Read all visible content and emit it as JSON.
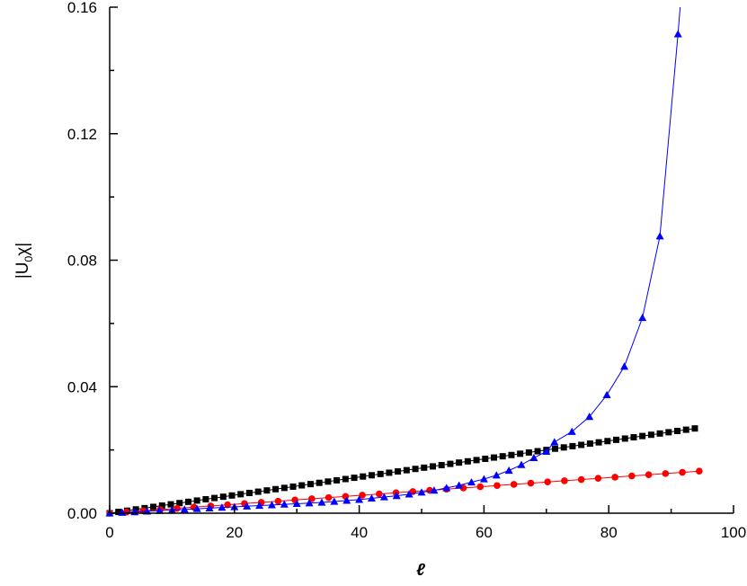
{
  "chart_data": {
    "type": "line",
    "xlabel": "ℓ",
    "ylabel_main": "|U",
    "ylabel_sub": "0",
    "ylabel_tail": "χ|",
    "xlim": [
      0,
      100
    ],
    "ylim": [
      0,
      0.16
    ],
    "x_ticks": [
      0,
      20,
      40,
      60,
      80,
      100
    ],
    "x_tick_labels": [
      "0",
      "20",
      "40",
      "60",
      "80",
      "100"
    ],
    "y_ticks": [
      0,
      0.04,
      0.08,
      0.12,
      0.16
    ],
    "y_tick_labels": [
      "0.00",
      "0.04",
      "0.08",
      "0.12",
      "0.16"
    ],
    "grid": false,
    "series": [
      {
        "marker": "square",
        "color": "#000000",
        "x": [
          0,
          1.4,
          2.8,
          4.2,
          5.6,
          7.0,
          8.4,
          9.8,
          11.2,
          12.6,
          14.0,
          15.4,
          16.8,
          18.2,
          19.6,
          21.0,
          22.4,
          23.8,
          25.2,
          26.6,
          28.0,
          29.4,
          30.8,
          32.2,
          33.6,
          35.0,
          36.4,
          37.8,
          39.2,
          40.6,
          42.0,
          43.4,
          44.8,
          46.2,
          47.6,
          49.0,
          50.4,
          51.8,
          53.2,
          54.6,
          56.0,
          57.4,
          58.8,
          60.2,
          61.6,
          63.0,
          64.4,
          65.8,
          67.2,
          68.6,
          70.0,
          71.4,
          72.8,
          74.2,
          75.6,
          77.0,
          78.4,
          79.8,
          81.2,
          82.6,
          84.0,
          85.4,
          86.8,
          88.2,
          89.6,
          91.0,
          92.4,
          93.8
        ],
        "values": [
          0.0,
          0.0004,
          0.0008,
          0.0012,
          0.0016,
          0.002,
          0.0024,
          0.0028,
          0.0032,
          0.0036,
          0.004,
          0.0044,
          0.0048,
          0.0052,
          0.0056,
          0.006,
          0.0064,
          0.0068,
          0.0072,
          0.0076,
          0.008,
          0.0084,
          0.0088,
          0.0092,
          0.0096,
          0.01,
          0.0104,
          0.0108,
          0.0112,
          0.0116,
          0.012,
          0.0124,
          0.0128,
          0.0132,
          0.0136,
          0.014,
          0.0144,
          0.0148,
          0.0152,
          0.0156,
          0.016,
          0.0164,
          0.0168,
          0.0172,
          0.0176,
          0.018,
          0.0184,
          0.0188,
          0.0192,
          0.0196,
          0.02,
          0.0204,
          0.0208,
          0.0212,
          0.0216,
          0.022,
          0.0224,
          0.0228,
          0.0232,
          0.0236,
          0.024,
          0.0244,
          0.0248,
          0.0252,
          0.0256,
          0.026,
          0.0264,
          0.0268
        ]
      },
      {
        "marker": "circle",
        "color": "#ff0000",
        "x": [
          0,
          2.7,
          5.4,
          8.1,
          10.8,
          13.5,
          16.2,
          18.9,
          21.6,
          24.3,
          27.0,
          29.7,
          32.4,
          35.1,
          37.8,
          40.5,
          43.2,
          45.9,
          48.6,
          51.3,
          54.0,
          56.7,
          59.4,
          62.1,
          64.8,
          67.5,
          70.2,
          72.9,
          75.6,
          78.3,
          81.0,
          83.7,
          86.4,
          89.1,
          91.8,
          94.5
        ],
        "values": [
          0.0,
          0.00038,
          0.00076,
          0.00114,
          0.00152,
          0.0019,
          0.00228,
          0.00266,
          0.00304,
          0.00342,
          0.0038,
          0.00418,
          0.00456,
          0.00494,
          0.00532,
          0.0057,
          0.00608,
          0.00646,
          0.00684,
          0.00722,
          0.0076,
          0.00798,
          0.00836,
          0.00874,
          0.00912,
          0.0095,
          0.00988,
          0.01026,
          0.01064,
          0.01102,
          0.0114,
          0.01178,
          0.01216,
          0.01254,
          0.01292,
          0.0133
        ]
      },
      {
        "marker": "triangle",
        "color": "#0000ff",
        "x": [
          0,
          2.0,
          4.0,
          6.0,
          8.0,
          10.0,
          12.0,
          14.0,
          16.0,
          18.0,
          20.0,
          22.0,
          24.0,
          26.0,
          28.0,
          30.0,
          32.0,
          34.0,
          36.0,
          38.0,
          40.0,
          42.0,
          44.0,
          46.0,
          48.0,
          50.0,
          52.0,
          54.0,
          56.0,
          58.0,
          60.0,
          62.0,
          64.0,
          66.0,
          68.0,
          70.0,
          71.3,
          74.1,
          76.9,
          79.7,
          82.5,
          85.4,
          88.2,
          91.1
        ],
        "values": [
          0.0,
          0.0002,
          0.0004,
          0.0006,
          0.0008,
          0.001,
          0.0012,
          0.0014,
          0.0016,
          0.0018,
          0.002,
          0.0022,
          0.0024,
          0.0026,
          0.0028,
          0.003,
          0.0032,
          0.0034,
          0.0037,
          0.004,
          0.0043,
          0.0047,
          0.0051,
          0.0055,
          0.006,
          0.0066,
          0.0072,
          0.008,
          0.0088,
          0.0098,
          0.0108,
          0.012,
          0.0135,
          0.0153,
          0.0175,
          0.0195,
          0.0225,
          0.0258,
          0.0305,
          0.0374,
          0.0464,
          0.0618,
          0.0876,
          0.1515
        ]
      }
    ]
  }
}
